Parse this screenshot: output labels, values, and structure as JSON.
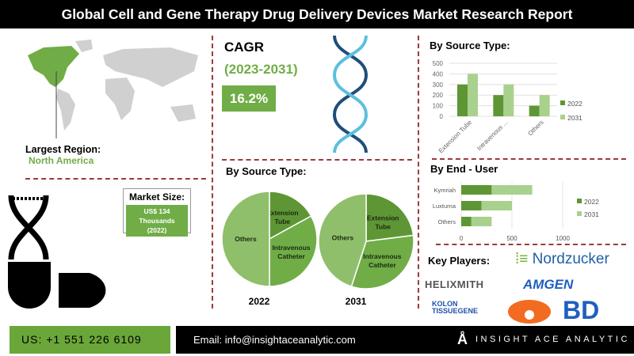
{
  "title": "Global Cell and Gene Therapy Drug Delivery Devices Market Research Report",
  "region": {
    "label": "Largest Region:",
    "value": "North America"
  },
  "market_size": {
    "label": "Market Size:",
    "value": "US$ 134 Thousands",
    "year": "(2022)"
  },
  "cagr": {
    "label": "CAGR",
    "period": "(2023-2031)",
    "value": "16.2%"
  },
  "colors": {
    "dark_green": "#5e9635",
    "light_green": "#a9d18e",
    "mid_green": "#70ad47",
    "pie_light": "#8fbf6a",
    "red_dash": "#9b3b3b"
  },
  "key_players": {
    "label": "Key Players:",
    "items": [
      "Nordzucker",
      "HELIXMITH",
      "AMGEN",
      "KOLON TISSUEGENE",
      "BD"
    ]
  },
  "footer": {
    "phone": "US: +1 551 226 6109",
    "email": "Email: info@insightaceanalytic.com",
    "brand": "INSIGHT ACE ANALYTIC"
  },
  "chart_data": [
    {
      "type": "bar",
      "title": "By Source Type:",
      "categories": [
        "Extension Tube",
        "Intravenous ...",
        "Others"
      ],
      "series": [
        {
          "name": "2022",
          "values": [
            300,
            200,
            100
          ]
        },
        {
          "name": "2031",
          "values": [
            400,
            300,
            200
          ]
        }
      ],
      "ylim": [
        0,
        500
      ],
      "yticks": [
        0,
        100,
        200,
        300,
        400,
        500
      ],
      "legend": "right"
    },
    {
      "type": "pie",
      "title": "By Source Type:",
      "charts": [
        {
          "year": "2022",
          "labels": [
            "Extension Tube",
            "Intravenous Catheter",
            "Others"
          ],
          "values": [
            17,
            33,
            50
          ]
        },
        {
          "year": "2031",
          "labels": [
            "Extension Tube",
            "Intravenous Catheter",
            "Others"
          ],
          "values": [
            23,
            32,
            45
          ]
        }
      ]
    },
    {
      "type": "bar",
      "orientation": "horizontal",
      "stacked": true,
      "title": "By End - User",
      "categories": [
        "Kymriah",
        "Luxturna",
        "Others"
      ],
      "series": [
        {
          "name": "2022",
          "values": [
            300,
            200,
            100
          ]
        },
        {
          "name": "2031",
          "values": [
            400,
            300,
            200
          ]
        }
      ],
      "xlim": [
        0,
        1000
      ],
      "xticks": [
        0,
        500,
        1000
      ],
      "legend": "right"
    }
  ]
}
